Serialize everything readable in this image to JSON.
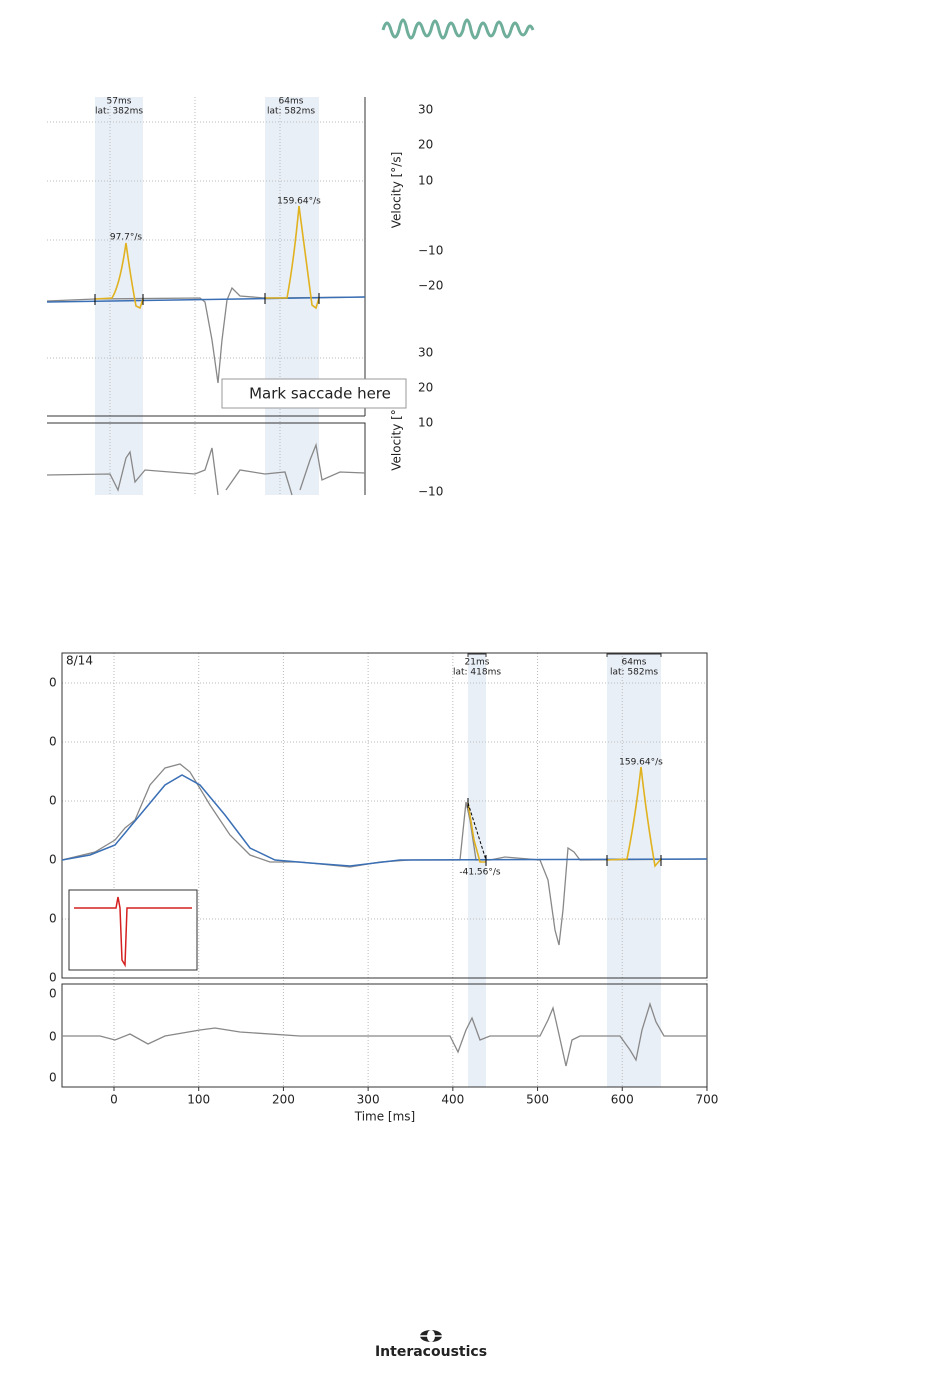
{
  "figure_top": {
    "bands": [
      {
        "duration": "57ms",
        "latency": "lat: 382ms"
      },
      {
        "duration": "64ms",
        "latency": "lat: 582ms"
      }
    ],
    "peak_labels": [
      "97.7°/s",
      "159.64°/s"
    ],
    "tooltip": "Mark saccade here",
    "y_label_upper": "Velocity [°/s]",
    "yticks_upper": [
      "30",
      "20",
      "10",
      "−10",
      "−20"
    ],
    "y_label_lower": "Velocity [°",
    "yticks_lower": [
      "30",
      "20",
      "10",
      "−10"
    ]
  },
  "figure_bottom": {
    "trial": "8/14",
    "bands": [
      {
        "duration": "21ms",
        "latency": "lat: 418ms"
      },
      {
        "duration": "64ms",
        "latency": "lat: 582ms"
      }
    ],
    "peak_labels": [
      "159.64°/s",
      "-41.56°/s"
    ],
    "yticks_upper": [
      "0",
      "0",
      "0",
      "0",
      "0",
      "0"
    ],
    "yticks_lower": [
      "0",
      "0",
      "0"
    ],
    "xticks": [
      0,
      100,
      200,
      300,
      400,
      500,
      600,
      700
    ],
    "x_label": "Time [ms]"
  },
  "footer": {
    "brand": "Interacoustics"
  }
}
